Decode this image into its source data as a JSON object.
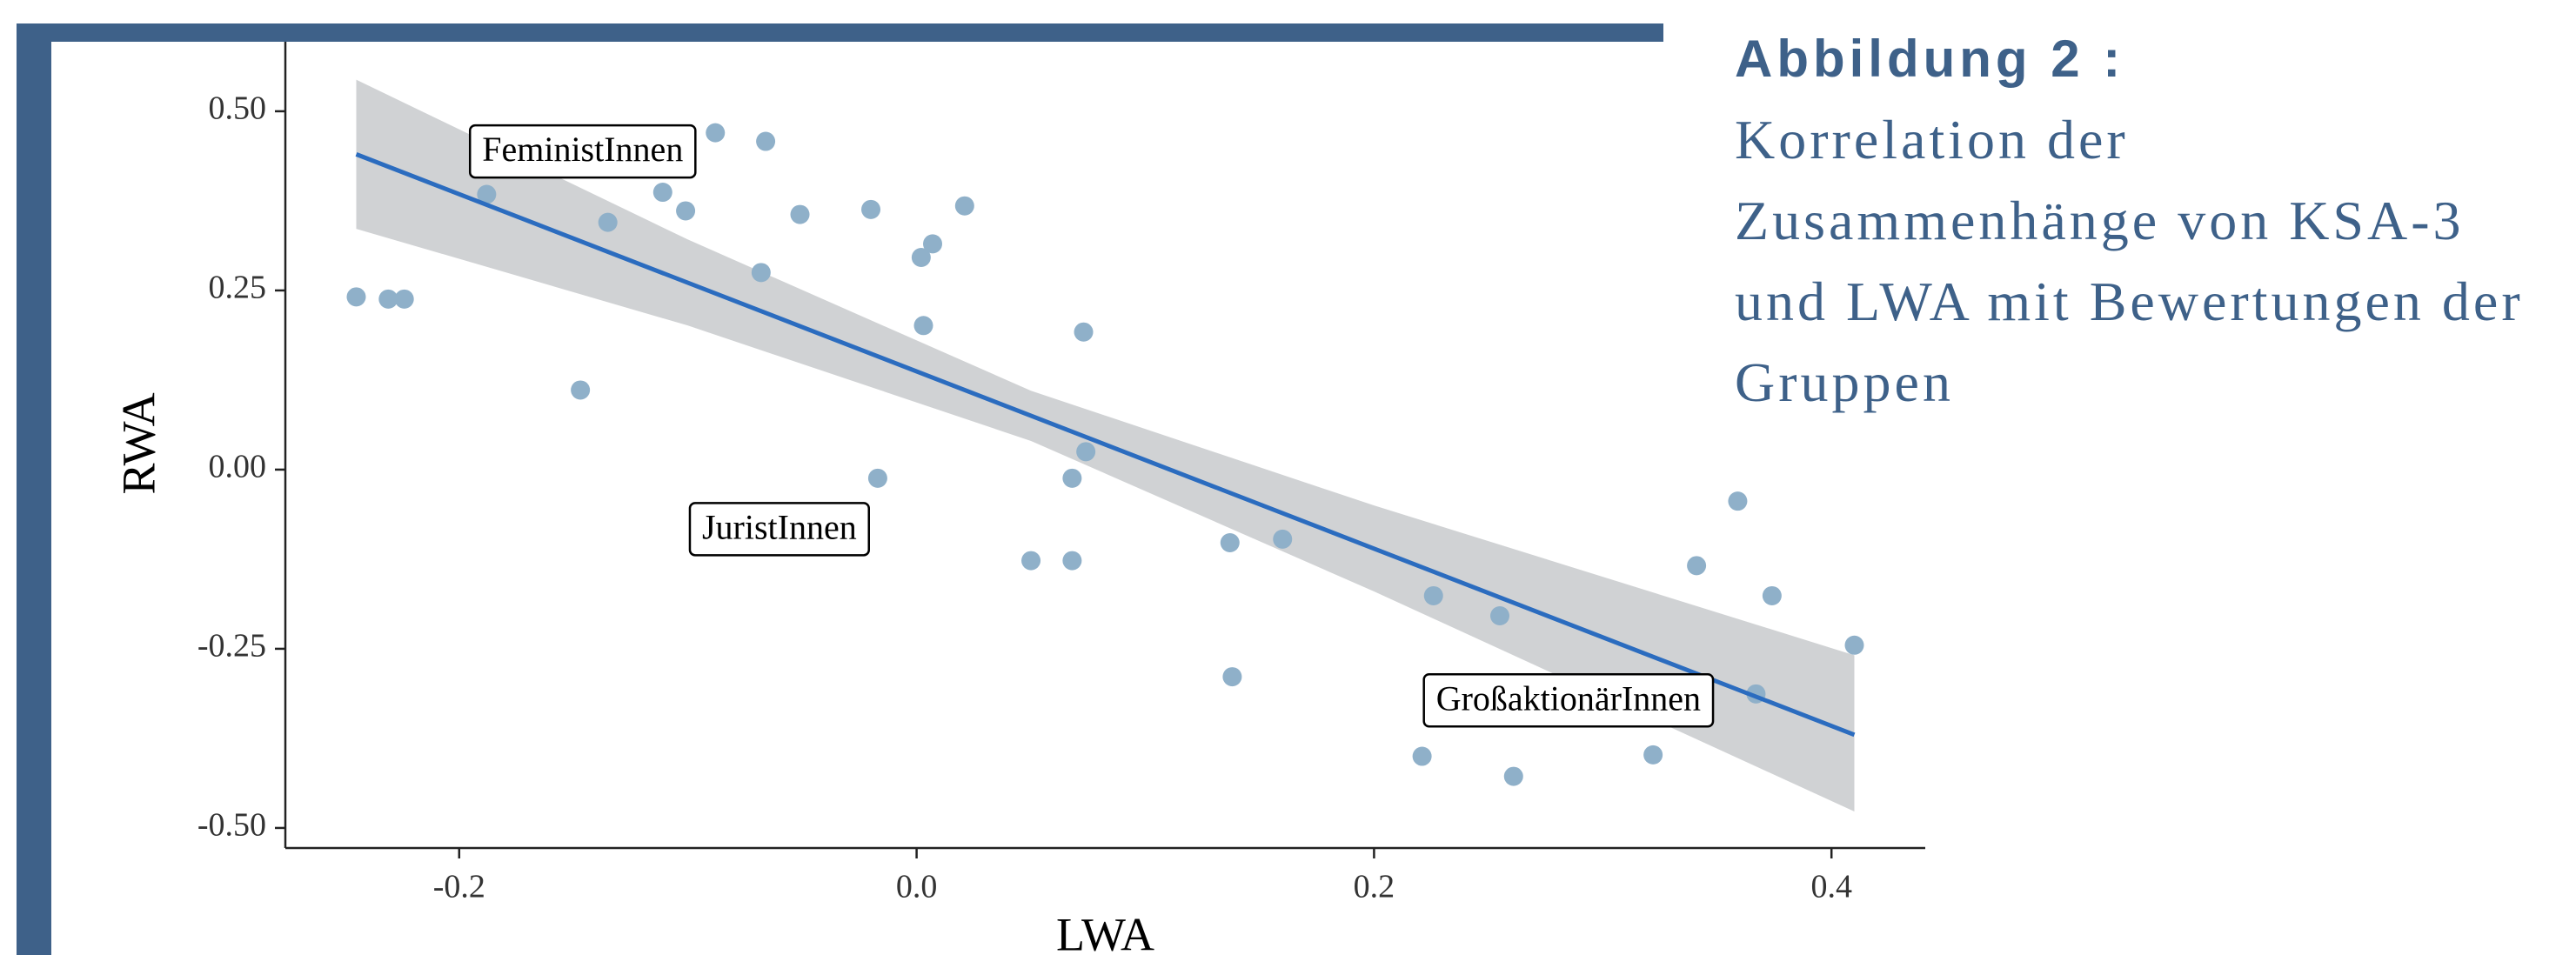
{
  "chart_data": {
    "type": "scatter",
    "title": "Abbildung 2 :",
    "subtitle": "Korrelation der Zusammenhänge von KSA-3 und LWA mit Bewertungen der Gruppen",
    "x_label": "LWA",
    "y_label": "RWA",
    "xlim": [
      -0.276,
      0.441
    ],
    "ylim": [
      -0.528,
      0.597
    ],
    "xticks": [
      {
        "value": -0.2,
        "label": "-0.2"
      },
      {
        "value": 0,
        "label": "0.0"
      },
      {
        "value": 0.2,
        "label": "0.2"
      },
      {
        "value": 0.4,
        "label": "0.4"
      }
    ],
    "yticks": [
      {
        "value": -0.5,
        "label": "-0.50"
      },
      {
        "value": -0.25,
        "label": "-0.25"
      },
      {
        "value": 0,
        "label": "0.00"
      },
      {
        "value": 0.25,
        "label": "0.25"
      },
      {
        "value": 0.5,
        "label": "0.50"
      }
    ],
    "series": [
      {
        "color": "#8fb0c9",
        "x": [
          -0.245,
          -0.231,
          -0.224,
          -0.188,
          -0.147,
          -0.135,
          -0.111,
          -0.101,
          -0.088,
          -0.068,
          -0.066,
          -0.051,
          -0.02,
          -0.017,
          0.002,
          0.003,
          0.007,
          0.021,
          0.05,
          0.068,
          0.068,
          0.073,
          0.074,
          0.137,
          0.138,
          0.16,
          0.221,
          0.226,
          0.255,
          0.261,
          0.322,
          0.341,
          0.359,
          0.367,
          0.374,
          0.41
        ],
        "values": [
          0.241,
          0.238,
          0.238,
          0.384,
          0.111,
          0.345,
          0.387,
          0.361,
          0.47,
          0.275,
          0.458,
          0.356,
          0.363,
          -0.012,
          0.296,
          0.201,
          0.315,
          0.368,
          -0.127,
          -0.127,
          -0.012,
          0.192,
          0.025,
          -0.102,
          -0.289,
          -0.097,
          -0.4,
          -0.176,
          -0.204,
          -0.428,
          -0.398,
          -0.134,
          -0.044,
          -0.313,
          -0.176,
          -0.245
        ]
      }
    ],
    "fit": {
      "color": "#2b6cbf",
      "x": [
        -0.245,
        0.41
      ],
      "values": [
        0.44,
        -0.37
      ]
    },
    "band": {
      "color": "#d0d2d4",
      "x": [
        -0.245,
        -0.1,
        0.05,
        0.2,
        0.41
      ],
      "upper": [
        0.544,
        0.321,
        0.11,
        -0.05,
        -0.259
      ],
      "lower": [
        0.336,
        0.201,
        0.04,
        -0.17,
        -0.477
      ]
    },
    "annotations": [
      {
        "text": "FeministInnen",
        "x": -0.146,
        "y": 0.444
      },
      {
        "text": "JuristInnen",
        "x": -0.06,
        "y": -0.083
      },
      {
        "text": "GroßaktionärInnen",
        "x": 0.285,
        "y": -0.322
      }
    ]
  }
}
